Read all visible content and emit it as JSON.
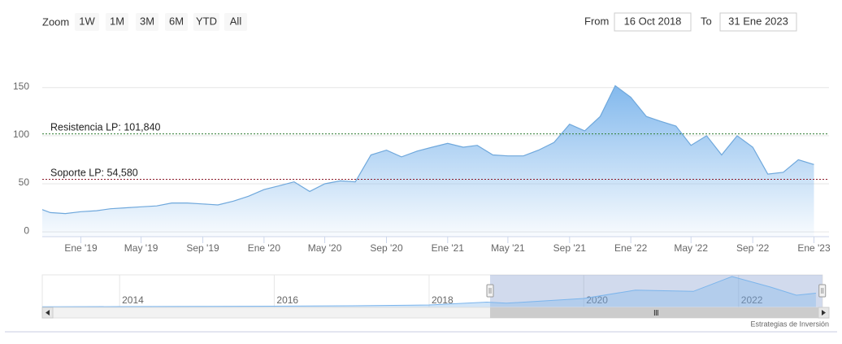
{
  "chart_data": {
    "type": "area",
    "color": "#6fa8dc",
    "range_selector": {
      "label": "Zoom",
      "buttons": [
        "1W",
        "1M",
        "3M",
        "6M",
        "YTD",
        "All"
      ],
      "from_label": "From",
      "from": "16 Oct 2018",
      "to_label": "To",
      "to": "31 Ene 2023"
    },
    "x": [
      "2018-10",
      "2018-11",
      "2018-12",
      "2019-01",
      "2019-02",
      "2019-03",
      "2019-04",
      "2019-05",
      "2019-06",
      "2019-07",
      "2019-08",
      "2019-09",
      "2019-10",
      "2019-11",
      "2019-12",
      "2020-01",
      "2020-02",
      "2020-03",
      "2020-04",
      "2020-05",
      "2020-06",
      "2020-07",
      "2020-08",
      "2020-09",
      "2020-10",
      "2020-11",
      "2020-12",
      "2021-01",
      "2021-02",
      "2021-03",
      "2021-04",
      "2021-05",
      "2021-06",
      "2021-07",
      "2021-08",
      "2021-09",
      "2021-10",
      "2021-11",
      "2021-12",
      "2022-01",
      "2022-02",
      "2022-03",
      "2022-04",
      "2022-05",
      "2022-06",
      "2022-07",
      "2022-08",
      "2022-09",
      "2022-10",
      "2022-11",
      "2022-12",
      "2023-01"
    ],
    "values": [
      26,
      20,
      19,
      21,
      22,
      24,
      25,
      26,
      27,
      30,
      30,
      29,
      28,
      32,
      37,
      44,
      48,
      52,
      42,
      50,
      53,
      52,
      80,
      85,
      78,
      84,
      88,
      92,
      88,
      90,
      80,
      79,
      79,
      85,
      93,
      112,
      105,
      120,
      152,
      140,
      120,
      115,
      110,
      90,
      100,
      80,
      100,
      88,
      60,
      62,
      75,
      70
    ],
    "xlim": [
      "2018-10-16",
      "2023-01-31"
    ],
    "xticks": [
      {
        "value": "2019-01",
        "label": "Ene '19"
      },
      {
        "value": "2019-05",
        "label": "May '19"
      },
      {
        "value": "2019-09",
        "label": "Sep '19"
      },
      {
        "value": "2020-01",
        "label": "Ene '20"
      },
      {
        "value": "2020-05",
        "label": "May '20"
      },
      {
        "value": "2020-09",
        "label": "Sep '20"
      },
      {
        "value": "2021-01",
        "label": "Ene '21"
      },
      {
        "value": "2021-05",
        "label": "May '21"
      },
      {
        "value": "2021-09",
        "label": "Sep '21"
      },
      {
        "value": "2022-01",
        "label": "Ene '22"
      },
      {
        "value": "2022-05",
        "label": "May '22"
      },
      {
        "value": "2022-09",
        "label": "Sep '22"
      },
      {
        "value": "2023-01",
        "label": "Ene '23"
      }
    ],
    "ylim": [
      -5,
      165
    ],
    "yticks": [
      0,
      50,
      100,
      150
    ],
    "grid": true,
    "plot_lines": [
      {
        "value": 101.84,
        "label": "Resistencia LP: 101,840",
        "color": "#2e7d32"
      },
      {
        "value": 54.58,
        "label": "Soporte LP: 54,580",
        "color": "#8b1a2a"
      }
    ],
    "navigator": {
      "x": [
        "2013-01",
        "2014-01",
        "2015-01",
        "2016-01",
        "2017-01",
        "2018-01",
        "2018-10",
        "2019-01",
        "2020-01",
        "2020-09",
        "2021-06",
        "2021-12",
        "2022-06",
        "2022-10",
        "2023-01"
      ],
      "values": [
        3,
        4,
        5,
        6,
        8,
        12,
        26,
        21,
        44,
        85,
        79,
        152,
        100,
        60,
        70
      ],
      "xlim": [
        "2013-01",
        "2023-02"
      ],
      "ylim": [
        0,
        160
      ],
      "xticks": [
        2014,
        2016,
        2018,
        2020,
        2022
      ]
    },
    "credits": "Estrategias de Inversión"
  }
}
